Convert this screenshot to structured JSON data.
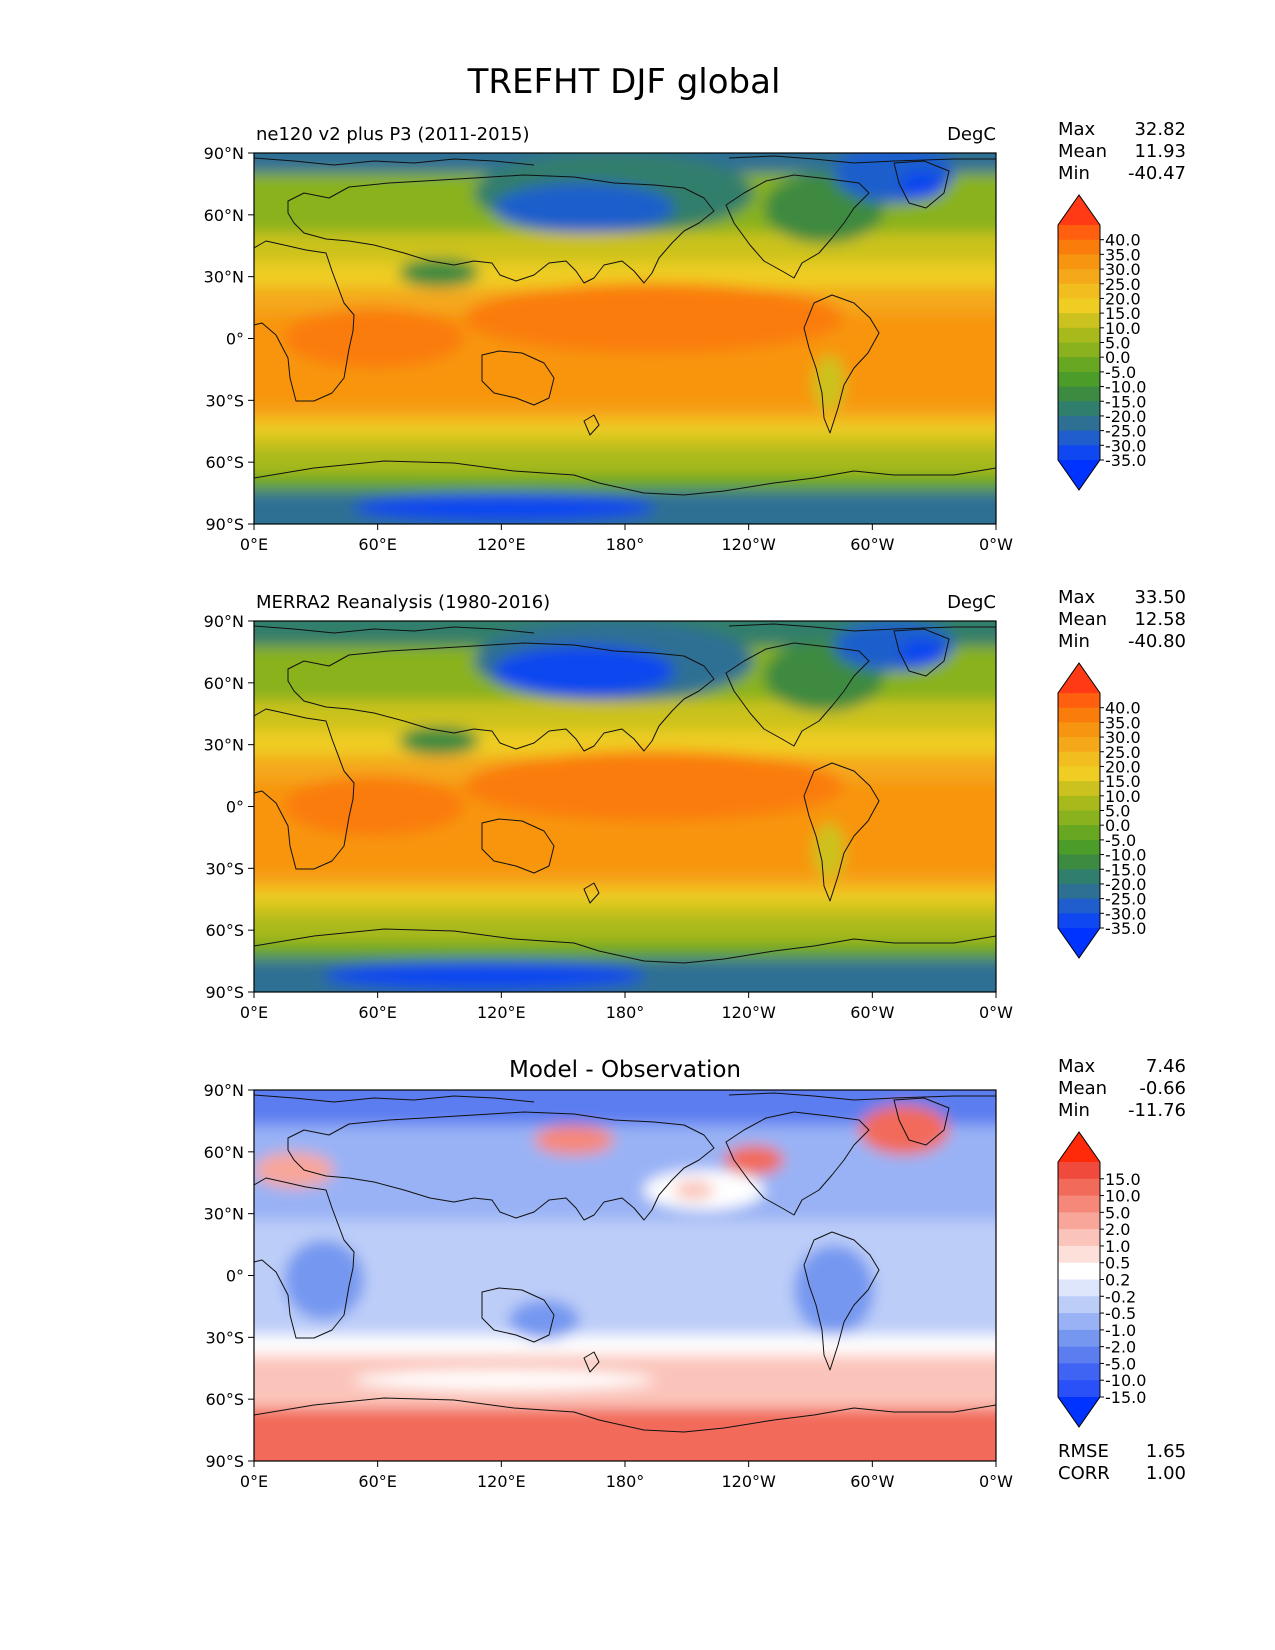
{
  "title": "TREFHT DJF global",
  "lat_ticks": [
    "90°N",
    "60°N",
    "30°N",
    "0°",
    "30°S",
    "60°S",
    "90°S"
  ],
  "lon_ticks": [
    "0°E",
    "60°E",
    "120°E",
    "180°",
    "120°W",
    "60°W",
    "0°W"
  ],
  "stat_labels": {
    "max": "Max",
    "mean": "Mean",
    "min": "Min",
    "rmse": "RMSE",
    "corr": "CORR"
  },
  "panels": [
    {
      "left_title": "ne120 v2 plus P3 (2011-2015)",
      "center_title": "",
      "units": "DegC",
      "stats": {
        "max": "32.82",
        "mean": "11.93",
        "min": "-40.47"
      },
      "colorbar": {
        "labels": [
          "40.0",
          "35.0",
          "30.0",
          "25.0",
          "20.0",
          "15.0",
          "10.0",
          "5.0",
          "0.0",
          "-5.0",
          "-10.0",
          "-15.0",
          "-20.0",
          "-25.0",
          "-30.0",
          "-35.0"
        ],
        "colors": [
          "#ff3a14",
          "#ff5f0f",
          "#fa7c0b",
          "#f89510",
          "#f4a81a",
          "#f2bd1e",
          "#efcd23",
          "#ccc21f",
          "#a8b91c",
          "#89b21e",
          "#67a721",
          "#4c9c2a",
          "#3d8a41",
          "#307e6c",
          "#2e6f94",
          "#1f5ecc",
          "#0f47f0",
          "#0033ff"
        ]
      }
    },
    {
      "left_title": "MERRA2 Reanalysis (1980-2016)",
      "center_title": "",
      "units": "DegC",
      "stats": {
        "max": "33.50",
        "mean": "12.58",
        "min": "-40.80"
      },
      "colorbar": {
        "labels": [
          "40.0",
          "35.0",
          "30.0",
          "25.0",
          "20.0",
          "15.0",
          "10.0",
          "5.0",
          "0.0",
          "-5.0",
          "-10.0",
          "-15.0",
          "-20.0",
          "-25.0",
          "-30.0",
          "-35.0"
        ],
        "colors": [
          "#ff3a14",
          "#ff5f0f",
          "#fa7c0b",
          "#f89510",
          "#f4a81a",
          "#f2bd1e",
          "#efcd23",
          "#ccc21f",
          "#a8b91c",
          "#89b21e",
          "#67a721",
          "#4c9c2a",
          "#3d8a41",
          "#307e6c",
          "#2e6f94",
          "#1f5ecc",
          "#0f47f0",
          "#0033ff"
        ]
      }
    },
    {
      "left_title": "",
      "center_title": "Model - Observation",
      "units": "",
      "stats": {
        "max": "7.46",
        "mean": "-0.66",
        "min": "-11.76",
        "rmse": "1.65",
        "corr": "1.00"
      },
      "colorbar": {
        "labels": [
          "15.0",
          "10.0",
          "5.0",
          "2.0",
          "1.0",
          "0.5",
          "0.2",
          "-0.2",
          "-0.5",
          "-1.0",
          "-2.0",
          "-5.0",
          "-10.0",
          "-15.0"
        ],
        "colors": [
          "#ff2a0a",
          "#ef4a3b",
          "#f26a5a",
          "#f6887a",
          "#f8a69a",
          "#fbc4ba",
          "#fde0da",
          "#ffffff",
          "#dde6fb",
          "#bccdf8",
          "#99b2f5",
          "#7597f0",
          "#5b7df0",
          "#3f64f3",
          "#2a50f8",
          "#0033ff"
        ]
      }
    }
  ]
}
